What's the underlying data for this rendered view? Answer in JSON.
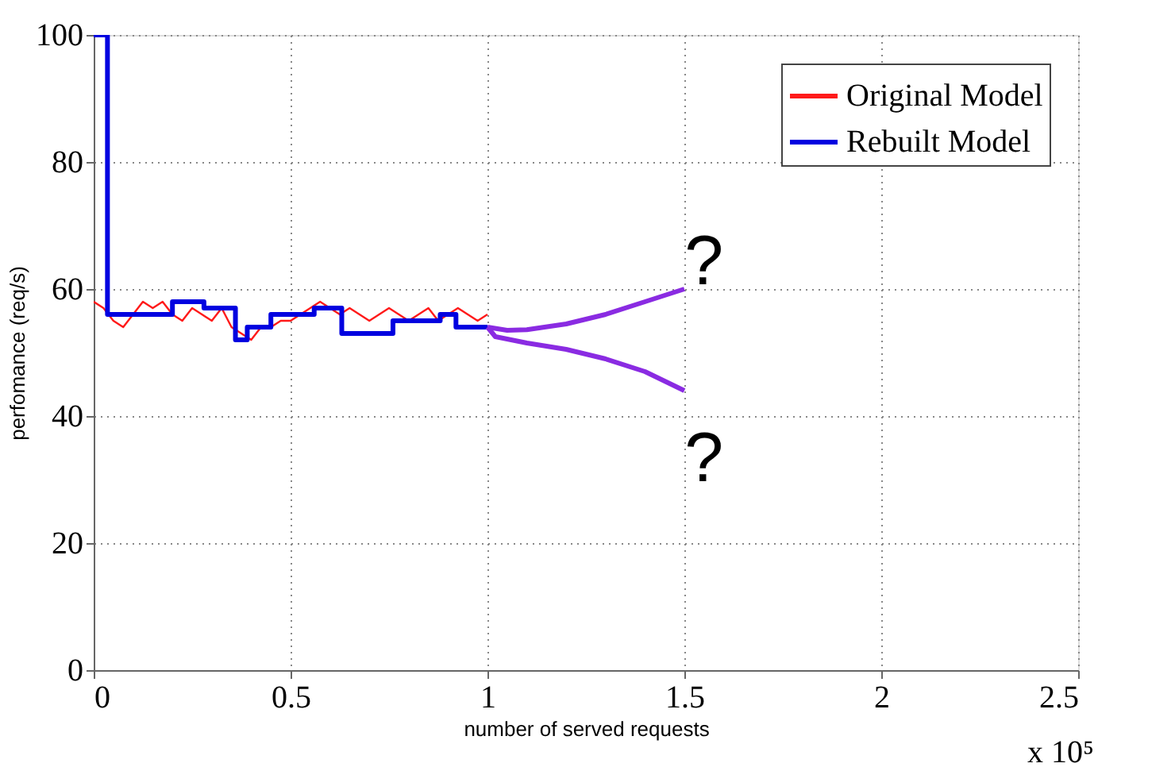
{
  "chart_data": {
    "type": "line",
    "xlabel": "number of served requests",
    "ylabel": "perfomance (req/s)",
    "xlim": [
      0,
      2.5
    ],
    "xticks": [
      0,
      0.5,
      1,
      1.5,
      2,
      2.5
    ],
    "ylim": [
      0,
      100
    ],
    "yticks": [
      0,
      20,
      40,
      60,
      80,
      100
    ],
    "grid": true,
    "legend": "top right",
    "line_style": "solid",
    "marker": "none",
    "series": [
      {
        "name": "Original Model",
        "color": "#ff1a1a",
        "x": [
          0,
          0.025,
          0.05,
          0.075,
          0.1,
          0.125,
          0.15,
          0.175,
          0.2,
          0.225,
          0.25,
          0.275,
          0.3,
          0.325,
          0.35,
          0.375,
          0.4,
          0.425,
          0.45,
          0.475,
          0.5,
          0.525,
          0.55,
          0.575,
          0.6,
          0.625,
          0.65,
          0.675,
          0.7,
          0.725,
          0.75,
          0.775,
          0.8,
          0.825,
          0.85,
          0.875,
          0.9,
          0.925,
          0.95,
          0.975,
          1.0
        ],
        "values": [
          58,
          57,
          55,
          54,
          56,
          58,
          57,
          58,
          56,
          55,
          57,
          56,
          55,
          57,
          54,
          53,
          52,
          54,
          54,
          55,
          55,
          56,
          57,
          58,
          57,
          56,
          57,
          56,
          55,
          56,
          57,
          56,
          55,
          56,
          57,
          55,
          56,
          57,
          56,
          55,
          56
        ]
      },
      {
        "name": "Rebuilt Model",
        "color": "#0000e0",
        "type": "step",
        "x": [
          0,
          0.035,
          0.2,
          0.28,
          0.36,
          0.39,
          0.45,
          0.56,
          0.63,
          0.76,
          0.88,
          0.92,
          1.0
        ],
        "values": [
          100,
          56,
          58,
          57,
          52,
          54,
          56,
          57,
          53,
          55,
          56,
          54,
          54
        ]
      },
      {
        "color": "#8a2be2",
        "x": [
          1.0,
          1.05,
          1.1,
          1.2,
          1.3,
          1.4,
          1.5
        ],
        "values": [
          54,
          53.5,
          53.6,
          54.5,
          56,
          58,
          60
        ]
      },
      {
        "color": "#8a2be2",
        "x": [
          1.0,
          1.02,
          1.1,
          1.2,
          1.3,
          1.4,
          1.5
        ],
        "values": [
          54,
          52.5,
          51.5,
          50.5,
          49,
          47,
          44
        ]
      }
    ],
    "annotations": [
      "?",
      "?",
      "x 10⁵"
    ]
  }
}
